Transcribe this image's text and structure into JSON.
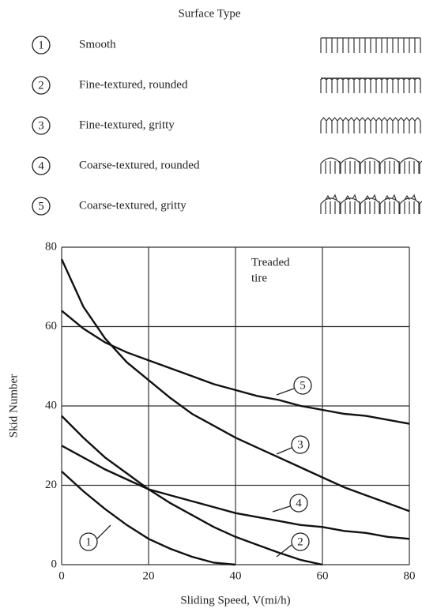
{
  "chart_data": {
    "type": "line",
    "legend_title": "Surface Type",
    "x": [
      0,
      5,
      10,
      15,
      20,
      25,
      30,
      35,
      40,
      45,
      50,
      55,
      60,
      65,
      70,
      75,
      80
    ],
    "series": [
      {
        "label": "1",
        "name": "Smooth",
        "color": "#111",
        "values": [
          23.5,
          18.5,
          14,
          10,
          6.5,
          4,
          2,
          0.5,
          0,
          null,
          null,
          null,
          null,
          null,
          null,
          null,
          null
        ]
      },
      {
        "label": "2",
        "name": "Fine-textured, rounded",
        "color": "#111",
        "values": [
          37.5,
          32,
          27,
          23,
          19,
          15.5,
          12.5,
          9.5,
          7,
          5,
          3,
          1.2,
          0,
          null,
          null,
          null,
          null
        ]
      },
      {
        "label": "3",
        "name": "Fine-textured, gritty",
        "color": "#111",
        "values": [
          77,
          65,
          57,
          51,
          46.5,
          42,
          38,
          35,
          32,
          29.5,
          27,
          24.5,
          22,
          19.5,
          17.5,
          15.5,
          13.5
        ]
      },
      {
        "label": "4",
        "name": "Coarse-textured, rounded",
        "color": "#111",
        "values": [
          30,
          27,
          24,
          21.5,
          19,
          17.5,
          16,
          14.5,
          13,
          12,
          11,
          10,
          9.5,
          8.5,
          8,
          7,
          6.5
        ]
      },
      {
        "label": "5",
        "name": "Coarse-textured, gritty",
        "color": "#111",
        "values": [
          64,
          59.5,
          56,
          53.5,
          51.5,
          49.5,
          47.5,
          45.5,
          44,
          42.5,
          41.5,
          40,
          39,
          38,
          37.5,
          36.5,
          35.5
        ]
      }
    ],
    "xlim": [
      0,
      80
    ],
    "xticks": [
      0,
      20,
      40,
      60,
      80
    ],
    "ylim": [
      0,
      80
    ],
    "yticks": [
      0,
      20,
      40,
      60,
      80
    ],
    "grid": true,
    "x_label": "Sliding Speed, V(mi/h)",
    "y_label": "Skid Number",
    "annotation_lines": [
      "Treaded",
      "tire"
    ]
  }
}
